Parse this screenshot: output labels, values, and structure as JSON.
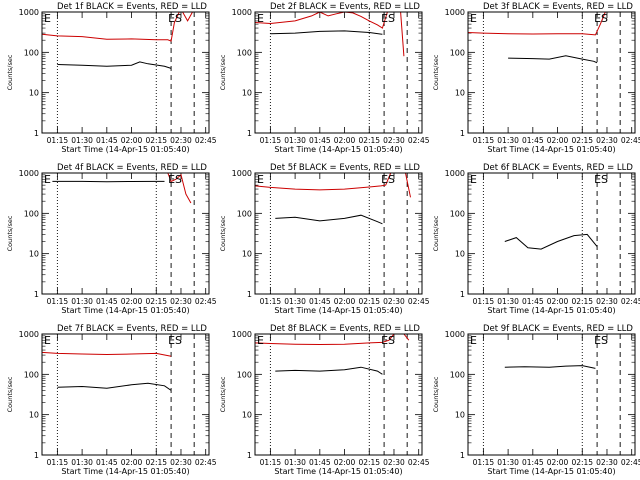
{
  "chart_data": [
    {
      "type": "line",
      "title": "Det 1f BLACK = Events, RED = LLD",
      "xlabel": "Start Time (14-Apr-15 01:05:40)",
      "ylabel": "Counts/sec",
      "yscale": "log",
      "ylim": [
        1,
        1000
      ],
      "y_ticks": [
        "1",
        "10",
        "100",
        "1000"
      ],
      "xlim": [
        "01:05:40",
        "02:47:00"
      ],
      "x_ticks": [
        "01:15",
        "01:30",
        "01:45",
        "02:00",
        "02:15",
        "02:30",
        "02:45"
      ],
      "annotations": [
        "E",
        "ES"
      ],
      "series": [
        {
          "color": "#cc0000",
          "x": [
            "01:05:40",
            "01:15",
            "01:30",
            "01:45",
            "02:00",
            "02:15",
            "02:22",
            "02:24",
            "02:26",
            "02:29",
            "02:31",
            "02:34",
            "02:37",
            "02:40"
          ],
          "y": [
            280,
            255,
            245,
            210,
            215,
            205,
            205,
            190,
            550,
            1000,
            1000,
            600,
            1000,
            1000
          ]
        },
        {
          "color": "#000000",
          "x": [
            "01:15",
            "01:30",
            "01:45",
            "02:00",
            "02:05",
            "02:10",
            "02:20",
            "02:24"
          ],
          "y": [
            50,
            48,
            45,
            48,
            58,
            52,
            45,
            40
          ]
        }
      ]
    },
    {
      "type": "line",
      "title": "Det 2f BLACK = Events, RED = LLD",
      "xlabel": "Start Time (14-Apr-15 01:05:40)",
      "ylabel": "Counts/sec",
      "yscale": "log",
      "ylim": [
        1,
        1000
      ],
      "y_ticks": [
        "1",
        "10",
        "100",
        "1000"
      ],
      "xlim": [
        "01:05:40",
        "02:47:00"
      ],
      "x_ticks": [
        "01:15",
        "01:30",
        "01:45",
        "02:00",
        "02:15",
        "02:30",
        "02:45"
      ],
      "annotations": [
        "E",
        "ES"
      ],
      "series": [
        {
          "color": "#cc0000",
          "x": [
            "01:05:40",
            "01:15",
            "01:30",
            "01:40",
            "01:45",
            "01:50",
            "01:55",
            "02:00",
            "02:05",
            "02:10",
            "02:15",
            "02:20",
            "02:23",
            "02:26",
            "02:29",
            "02:32",
            "02:34",
            "02:36"
          ],
          "y": [
            550,
            520,
            600,
            800,
            1000,
            800,
            900,
            1000,
            950,
            780,
            600,
            480,
            400,
            1000,
            1000,
            1000,
            1000,
            80
          ]
        },
        {
          "color": "#000000",
          "x": [
            "01:15",
            "01:30",
            "01:45",
            "02:00",
            "02:15",
            "02:23"
          ],
          "y": [
            290,
            300,
            330,
            340,
            310,
            280
          ]
        }
      ]
    },
    {
      "type": "line",
      "title": "Det 3f BLACK = Events, RED = LLD",
      "xlabel": "Start Time (14-Apr-15 01:05:40)",
      "ylabel": "Counts/sec",
      "yscale": "log",
      "ylim": [
        1,
        1000
      ],
      "y_ticks": [
        "1",
        "10",
        "100",
        "1000"
      ],
      "xlim": [
        "01:05:40",
        "02:47:00"
      ],
      "x_ticks": [
        "01:15",
        "01:30",
        "01:45",
        "02:00",
        "02:15",
        "02:30",
        "02:45"
      ],
      "annotations": [
        "E",
        "ES"
      ],
      "series": [
        {
          "color": "#cc0000",
          "x": [
            "01:05:40",
            "01:15",
            "01:30",
            "01:45",
            "02:00",
            "02:15",
            "02:23",
            "02:26",
            "02:29",
            "02:31",
            "02:35",
            "02:40"
          ],
          "y": [
            310,
            300,
            290,
            285,
            290,
            290,
            270,
            500,
            1000,
            1000,
            1000,
            1000
          ]
        },
        {
          "color": "#000000",
          "x": [
            "01:30",
            "01:45",
            "01:55",
            "02:05",
            "02:15",
            "02:22",
            "02:24"
          ],
          "y": [
            72,
            70,
            68,
            82,
            68,
            60,
            55
          ]
        }
      ]
    },
    {
      "type": "line",
      "title": "Det 4f BLACK = Events, RED = LLD",
      "xlabel": "Start Time (14-Apr-15 01:05:40)",
      "ylabel": "Counts/sec",
      "yscale": "log",
      "ylim": [
        1,
        1000
      ],
      "y_ticks": [
        "1",
        "10",
        "100",
        "1000"
      ],
      "xlim": [
        "01:05:40",
        "02:47:00"
      ],
      "x_ticks": [
        "01:15",
        "01:30",
        "01:45",
        "02:00",
        "02:15",
        "02:30",
        "02:45"
      ],
      "annotations": [
        "E",
        "ES"
      ],
      "series": [
        {
          "color": "#cc0000",
          "x": [
            "01:05:40",
            "01:15",
            "01:30",
            "01:45",
            "02:00",
            "02:15",
            "02:22",
            "02:24",
            "02:27",
            "02:30",
            "02:33",
            "02:36"
          ],
          "y": [
            1050,
            1020,
            1010,
            1000,
            1000,
            1000,
            1000,
            620,
            700,
            900,
            300,
            180
          ]
        },
        {
          "color": "#000000",
          "x": [
            "01:12",
            "01:30",
            "01:45",
            "02:00",
            "02:15",
            "02:20"
          ],
          "y": [
            620,
            620,
            610,
            615,
            620,
            620
          ]
        }
      ]
    },
    {
      "type": "line",
      "title": "Det 5f BLACK = Events, RED = LLD",
      "xlabel": "Start Time (14-Apr-15 01:05:40)",
      "ylabel": "Counts/sec",
      "yscale": "log",
      "ylim": [
        1,
        1000
      ],
      "y_ticks": [
        "1",
        "10",
        "100",
        "1000"
      ],
      "xlim": [
        "01:05:40",
        "02:47:00"
      ],
      "x_ticks": [
        "01:15",
        "01:30",
        "01:45",
        "02:00",
        "02:15",
        "02:30",
        "02:45"
      ],
      "annotations": [
        "E",
        "ES"
      ],
      "series": [
        {
          "color": "#cc0000",
          "x": [
            "01:05:40",
            "01:15",
            "01:30",
            "01:45",
            "02:00",
            "02:15",
            "02:22",
            "02:25",
            "02:28",
            "02:31",
            "02:34",
            "02:37",
            "02:40"
          ],
          "y": [
            480,
            440,
            400,
            380,
            400,
            450,
            480,
            500,
            1000,
            1000,
            1000,
            1000,
            250
          ]
        },
        {
          "color": "#000000",
          "x": [
            "01:18",
            "01:30",
            "01:45",
            "02:00",
            "02:10",
            "02:20",
            "02:23"
          ],
          "y": [
            75,
            80,
            65,
            75,
            90,
            62,
            55
          ]
        }
      ]
    },
    {
      "type": "line",
      "title": "Det 6f BLACK = Events, RED = LLD",
      "xlabel": "Start Time (14-Apr-15 01:05:40)",
      "ylabel": "Counts/sec",
      "yscale": "log",
      "ylim": [
        1,
        1000
      ],
      "y_ticks": [
        "1",
        "10",
        "100",
        "1000"
      ],
      "xlim": [
        "01:05:40",
        "02:47:00"
      ],
      "x_ticks": [
        "01:15",
        "01:30",
        "01:45",
        "02:00",
        "02:15",
        "02:30",
        "02:45"
      ],
      "annotations": [
        "E",
        "ES"
      ],
      "series": [
        {
          "color": "#000000",
          "x": [
            "01:28",
            "01:35",
            "01:42",
            "01:50",
            "02:00",
            "02:10",
            "02:18",
            "02:24"
          ],
          "y": [
            20,
            25,
            14,
            13,
            20,
            28,
            30,
            15
          ]
        }
      ]
    },
    {
      "type": "line",
      "title": "Det 7f BLACK = Events, RED = LLD",
      "xlabel": "Start Time (14-Apr-15 01:05:40)",
      "ylabel": "Counts/sec",
      "yscale": "log",
      "ylim": [
        1,
        1000
      ],
      "y_ticks": [
        "1",
        "10",
        "100",
        "1000"
      ],
      "xlim": [
        "01:05:40",
        "02:47:00"
      ],
      "x_ticks": [
        "01:15",
        "01:30",
        "01:45",
        "02:00",
        "02:15",
        "02:30",
        "02:45"
      ],
      "annotations": [
        "E",
        "ES"
      ],
      "series": [
        {
          "color": "#cc0000",
          "x": [
            "01:05:40",
            "01:15",
            "01:30",
            "01:45",
            "02:00",
            "02:15",
            "02:24"
          ],
          "y": [
            350,
            330,
            320,
            310,
            320,
            330,
            280
          ]
        },
        {
          "color": "#000000",
          "x": [
            "01:15",
            "01:30",
            "01:45",
            "02:00",
            "02:10",
            "02:20",
            "02:24"
          ],
          "y": [
            48,
            50,
            45,
            55,
            60,
            52,
            40
          ]
        }
      ]
    },
    {
      "type": "line",
      "title": "Det 8f BLACK = Events, RED = LLD",
      "xlabel": "Start Time (14-Apr-15 01:05:40)",
      "ylabel": "Counts/sec",
      "yscale": "log",
      "ylim": [
        1,
        1000
      ],
      "y_ticks": [
        "1",
        "10",
        "100",
        "1000"
      ],
      "xlim": [
        "01:05:40",
        "02:47:00"
      ],
      "x_ticks": [
        "01:15",
        "01:30",
        "01:45",
        "02:00",
        "02:15",
        "02:30",
        "02:45"
      ],
      "annotations": [
        "E",
        "ES"
      ],
      "series": [
        {
          "color": "#cc0000",
          "x": [
            "01:05:40",
            "01:15",
            "01:30",
            "01:45",
            "02:00",
            "02:15",
            "02:23",
            "02:27",
            "02:30",
            "02:33",
            "02:36",
            "02:39"
          ],
          "y": [
            600,
            580,
            560,
            550,
            560,
            600,
            620,
            700,
            1000,
            1000,
            1000,
            700
          ]
        },
        {
          "color": "#000000",
          "x": [
            "01:18",
            "01:30",
            "01:45",
            "02:00",
            "02:10",
            "02:20",
            "02:23"
          ],
          "y": [
            120,
            125,
            120,
            130,
            150,
            120,
            100
          ]
        }
      ]
    },
    {
      "type": "line",
      "title": "Det 9f BLACK = Events, RED = LLD",
      "xlabel": "Start Time (14-Apr-15 01:05:40)",
      "ylabel": "Counts/sec",
      "yscale": "log",
      "ylim": [
        1,
        1000
      ],
      "y_ticks": [
        "1",
        "10",
        "100",
        "1000"
      ],
      "xlim": [
        "01:05:40",
        "02:47:00"
      ],
      "x_ticks": [
        "01:15",
        "01:30",
        "01:45",
        "02:00",
        "02:15",
        "02:30",
        "02:45"
      ],
      "annotations": [
        "E",
        "ES"
      ],
      "series": [
        {
          "color": "#000000",
          "x": [
            "01:28",
            "01:40",
            "01:55",
            "02:05",
            "02:15",
            "02:23"
          ],
          "y": [
            150,
            155,
            150,
            160,
            165,
            140
          ]
        }
      ]
    }
  ],
  "colors": {
    "red_lld": "#cc0000",
    "black_events": "#000000"
  }
}
